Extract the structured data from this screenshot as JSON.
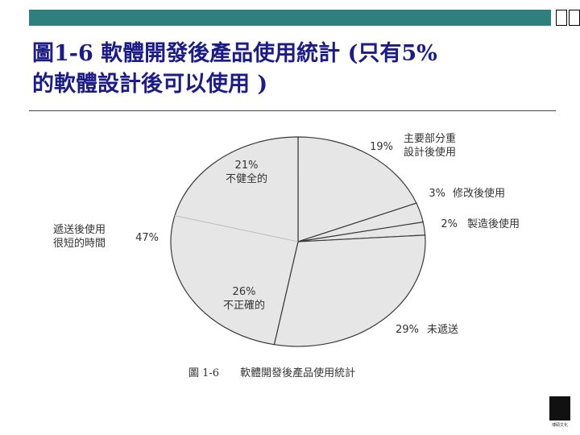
{
  "slide": {
    "title_line1": "圖1-6 軟體開發後產品使用統計 (只有5%",
    "title_line2": "的軟體設計後可以使用 )"
  },
  "chart_data": {
    "type": "pie",
    "caption": "圖 1-6　　軟體開發後產品使用統計",
    "slices": [
      {
        "label": "主要部分重設計後使用",
        "label_lines": [
          "主要部分重",
          "設計後使用"
        ],
        "value": 19,
        "value_label": "19%"
      },
      {
        "label": "修改後使用",
        "label_lines": [
          "修改後使用"
        ],
        "value": 3,
        "value_label": "3%"
      },
      {
        "label": "製造後使用",
        "label_lines": [
          "製造後使用"
        ],
        "value": 2,
        "value_label": "2%"
      },
      {
        "label": "未遞送",
        "label_lines": [
          "未遞送"
        ],
        "value": 29,
        "value_label": "29%"
      },
      {
        "label": "遞送後使用很短的時間",
        "label_lines": [
          "遞送後使用",
          "很短的時間"
        ],
        "value": 47,
        "value_label": "47%"
      }
    ],
    "sub_breakdown": [
      {
        "label": "不健全的",
        "value": 21,
        "value_label": "21%"
      },
      {
        "label": "不正確的",
        "value": 26,
        "value_label": "26%"
      }
    ],
    "colors": {
      "fill": "#e6e6e6",
      "stroke": "#3a3a3a",
      "text": "#333333"
    }
  },
  "logo": {
    "text": "博碩文化"
  }
}
